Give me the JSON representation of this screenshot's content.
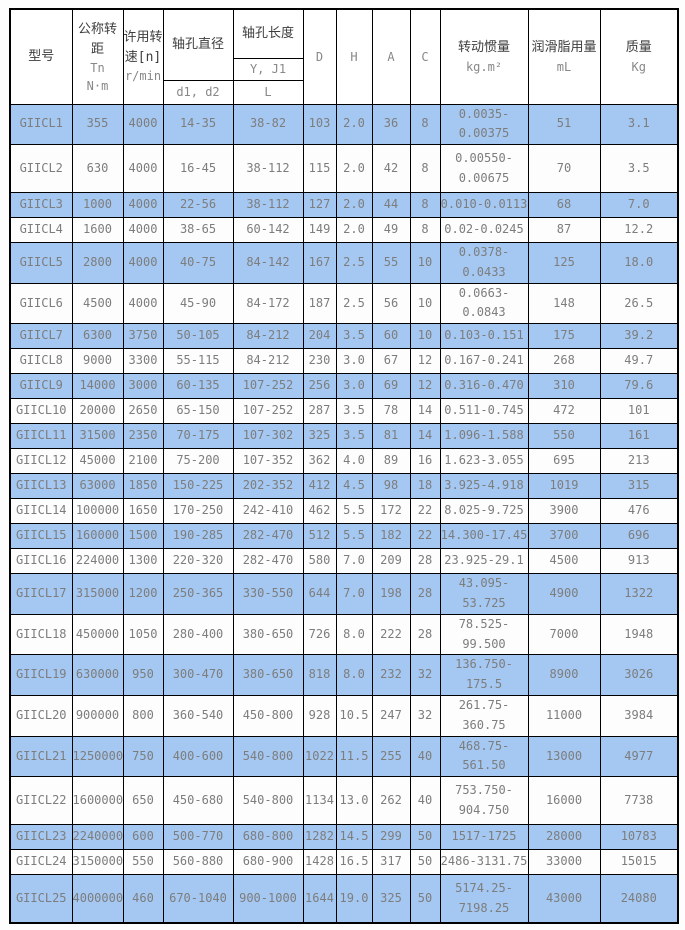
{
  "colors": {
    "row_alt_blue": "#a5c8f2",
    "row_white": "#ffffff",
    "grid_border": "#000000",
    "data_text": "#7d7d7d",
    "header_cjk_text": "#3d3d3d"
  },
  "table": {
    "header": {
      "model": "型号",
      "torque_title": "公称转距",
      "torque_sub1": "Tn",
      "torque_sub2": "N·m",
      "speed_title": "许用转速[n]",
      "speed_sub": "r/min",
      "bore_diameter_title": "轴孔直径",
      "bore_diameter_sub": "d1, d2",
      "bore_length_title": "轴孔长度",
      "bore_length_sub1": "Y, J1",
      "bore_length_sub2": "L",
      "col_d": "D",
      "col_h": "H",
      "col_a": "A",
      "col_c": "C",
      "inertia_title": "转动惯量",
      "inertia_sub": "kg.m²",
      "grease_title": "润滑脂用量",
      "grease_sub": "mL",
      "mass_title": "质量",
      "mass_sub": "Kg"
    },
    "rows": [
      [
        "GIICL1",
        "355",
        "4000",
        "14-35",
        "38-82",
        "103",
        "2.0",
        "36",
        "8",
        "0.0035-0.00375",
        "51",
        "3.1"
      ],
      [
        "GIICL2",
        "630",
        "4000",
        "16-45",
        "38-112",
        "115",
        "2.0",
        "42",
        "8",
        "0.00550-\n0.00675",
        "70",
        "3.5"
      ],
      [
        "GIICL3",
        "1000",
        "4000",
        "22-56",
        "38-112",
        "127",
        "2.0",
        "44",
        "8",
        "0.010-0.0113",
        "68",
        "7.0"
      ],
      [
        "GIICL4",
        "1600",
        "4000",
        "38-65",
        "60-142",
        "149",
        "2.0",
        "49",
        "8",
        "0.02-0.0245",
        "87",
        "12.2"
      ],
      [
        "GIICL5",
        "2800",
        "4000",
        "40-75",
        "84-142",
        "167",
        "2.5",
        "55",
        "10",
        "0.0378-0.0433",
        "125",
        "18.0"
      ],
      [
        "GIICL6",
        "4500",
        "4000",
        "45-90",
        "84-172",
        "187",
        "2.5",
        "56",
        "10",
        "0.0663-0.0843",
        "148",
        "26.5"
      ],
      [
        "GIICL7",
        "6300",
        "3750",
        "50-105",
        "84-212",
        "204",
        "3.5",
        "60",
        "10",
        "0.103-0.151",
        "175",
        "39.2"
      ],
      [
        "GIICL8",
        "9000",
        "3300",
        "55-115",
        "84-212",
        "230",
        "3.0",
        "67",
        "12",
        "0.167-0.241",
        "268",
        "49.7"
      ],
      [
        "GIICL9",
        "14000",
        "3000",
        "60-135",
        "107-252",
        "256",
        "3.0",
        "69",
        "12",
        "0.316-0.470",
        "310",
        "79.6"
      ],
      [
        "GIICL10",
        "20000",
        "2650",
        "65-150",
        "107-252",
        "287",
        "3.5",
        "78",
        "14",
        "0.511-0.745",
        "472",
        "101"
      ],
      [
        "GIICL11",
        "31500",
        "2350",
        "70-175",
        "107-302",
        "325",
        "3.5",
        "81",
        "14",
        "1.096-1.588",
        "550",
        "161"
      ],
      [
        "GIICL12",
        "45000",
        "2100",
        "75-200",
        "107-352",
        "362",
        "4.0",
        "89",
        "16",
        "1.623-3.055",
        "695",
        "213"
      ],
      [
        "GIICL13",
        "63000",
        "1850",
        "150-225",
        "202-352",
        "412",
        "4.5",
        "98",
        "18",
        "3.925-4.918",
        "1019",
        "315"
      ],
      [
        "GIICL14",
        "100000",
        "1650",
        "170-250",
        "242-410",
        "462",
        "5.5",
        "172",
        "22",
        "8.025-9.725",
        "3900",
        "476"
      ],
      [
        "GIICL15",
        "160000",
        "1500",
        "190-285",
        "282-470",
        "512",
        "5.5",
        "182",
        "22",
        "14.300-17.45",
        "3700",
        "696"
      ],
      [
        "GIICL16",
        "224000",
        "1300",
        "220-320",
        "282-470",
        "580",
        "7.0",
        "209",
        "28",
        "23.925-29.1",
        "4500",
        "913"
      ],
      [
        "GIICL17",
        "315000",
        "1200",
        "250-365",
        "330-550",
        "644",
        "7.0",
        "198",
        "28",
        "43.095-53.725",
        "4900",
        "1322"
      ],
      [
        "GIICL18",
        "450000",
        "1050",
        "280-400",
        "380-650",
        "726",
        "8.0",
        "222",
        "28",
        "78.525-99.500",
        "7000",
        "1948"
      ],
      [
        "GIICL19",
        "630000",
        "950",
        "300-470",
        "380-650",
        "818",
        "8.0",
        "232",
        "32",
        "136.750-175.5",
        "8900",
        "3026"
      ],
      [
        "GIICL20",
        "900000",
        "800",
        "360-540",
        "450-800",
        "928",
        "10.5",
        "247",
        "32",
        "261.75-360.75",
        "11000",
        "3984"
      ],
      [
        "GIICL21",
        "1250000",
        "750",
        "400-600",
        "540-800",
        "1022",
        "11.5",
        "255",
        "40",
        "468.75-561.50",
        "13000",
        "4977"
      ],
      [
        "GIICL22",
        "1600000",
        "650",
        "450-680",
        "540-800",
        "1134",
        "13.0",
        "262",
        "40",
        "753.750-\n904.750",
        "16000",
        "7738"
      ],
      [
        "GIICL23",
        "2240000",
        "600",
        "500-770",
        "680-800",
        "1282",
        "14.5",
        "299",
        "50",
        "1517-1725",
        "28000",
        "10783"
      ],
      [
        "GIICL24",
        "3150000",
        "550",
        "560-880",
        "680-900",
        "1428",
        "16.5",
        "317",
        "50",
        "2486-3131.75",
        "33000",
        "15015"
      ],
      [
        "GIICL25",
        "4000000",
        "460",
        "670-1040",
        "900-1000",
        "1644",
        "19.0",
        "325",
        "50",
        "5174.25-\n7198.25",
        "43000",
        "24080"
      ]
    ]
  }
}
